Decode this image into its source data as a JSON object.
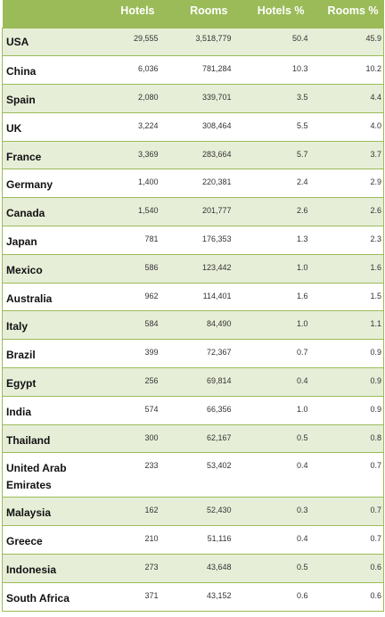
{
  "table": {
    "headers": [
      "",
      "Hotels",
      "Rooms",
      "Hotels %",
      "Rooms %"
    ],
    "rows": [
      {
        "country": "USA",
        "hotels": "29,555",
        "rooms": "3,518,779",
        "hotels_pct": "50.4",
        "rooms_pct": "45.9"
      },
      {
        "country": "China",
        "hotels": "6,036",
        "rooms": "781,284",
        "hotels_pct": "10.3",
        "rooms_pct": "10.2"
      },
      {
        "country": "Spain",
        "hotels": "2,080",
        "rooms": "339,701",
        "hotels_pct": "3.5",
        "rooms_pct": "4.4"
      },
      {
        "country": "UK",
        "hotels": "3,224",
        "rooms": "308,464",
        "hotels_pct": "5.5",
        "rooms_pct": "4.0"
      },
      {
        "country": "France",
        "hotels": "3,369",
        "rooms": "283,664",
        "hotels_pct": "5.7",
        "rooms_pct": "3.7"
      },
      {
        "country": "Germany",
        "hotels": "1,400",
        "rooms": "220,381",
        "hotels_pct": "2.4",
        "rooms_pct": "2.9"
      },
      {
        "country": "Canada",
        "hotels": "1,540",
        "rooms": "201,777",
        "hotels_pct": "2.6",
        "rooms_pct": "2.6"
      },
      {
        "country": "Japan",
        "hotels": "781",
        "rooms": "176,353",
        "hotels_pct": "1.3",
        "rooms_pct": "2.3"
      },
      {
        "country": "Mexico",
        "hotels": "586",
        "rooms": "123,442",
        "hotels_pct": "1.0",
        "rooms_pct": "1.6"
      },
      {
        "country": "Australia",
        "hotels": "962",
        "rooms": "114,401",
        "hotels_pct": "1.6",
        "rooms_pct": "1.5"
      },
      {
        "country": "Italy",
        "hotels": "584",
        "rooms": "84,490",
        "hotels_pct": "1.0",
        "rooms_pct": "1.1"
      },
      {
        "country": "Brazil",
        "hotels": "399",
        "rooms": "72,367",
        "hotels_pct": "0.7",
        "rooms_pct": "0.9"
      },
      {
        "country": "Egypt",
        "hotels": "256",
        "rooms": "69,814",
        "hotels_pct": "0.4",
        "rooms_pct": "0.9"
      },
      {
        "country": "India",
        "hotels": "574",
        "rooms": "66,356",
        "hotels_pct": "1.0",
        "rooms_pct": "0.9"
      },
      {
        "country": "Thailand",
        "hotels": "300",
        "rooms": "62,167",
        "hotels_pct": "0.5",
        "rooms_pct": "0.8"
      },
      {
        "country": "United Arab Emirates",
        "hotels": "233",
        "rooms": "53,402",
        "hotels_pct": "0.4",
        "rooms_pct": "0.7"
      },
      {
        "country": "Malaysia",
        "hotels": "162",
        "rooms": "52,430",
        "hotels_pct": "0.3",
        "rooms_pct": "0.7"
      },
      {
        "country": "Greece",
        "hotels": "210",
        "rooms": "51,116",
        "hotels_pct": "0.4",
        "rooms_pct": "0.7"
      },
      {
        "country": "Indonesia",
        "hotels": "273",
        "rooms": "43,648",
        "hotels_pct": "0.5",
        "rooms_pct": "0.6"
      },
      {
        "country": "South Africa",
        "hotels": "371",
        "rooms": "43,152",
        "hotels_pct": "0.6",
        "rooms_pct": "0.6"
      }
    ]
  },
  "colors": {
    "header_bg": "#9bbb59",
    "band_bg": "#e7eed8",
    "border": "#9bbb59"
  }
}
